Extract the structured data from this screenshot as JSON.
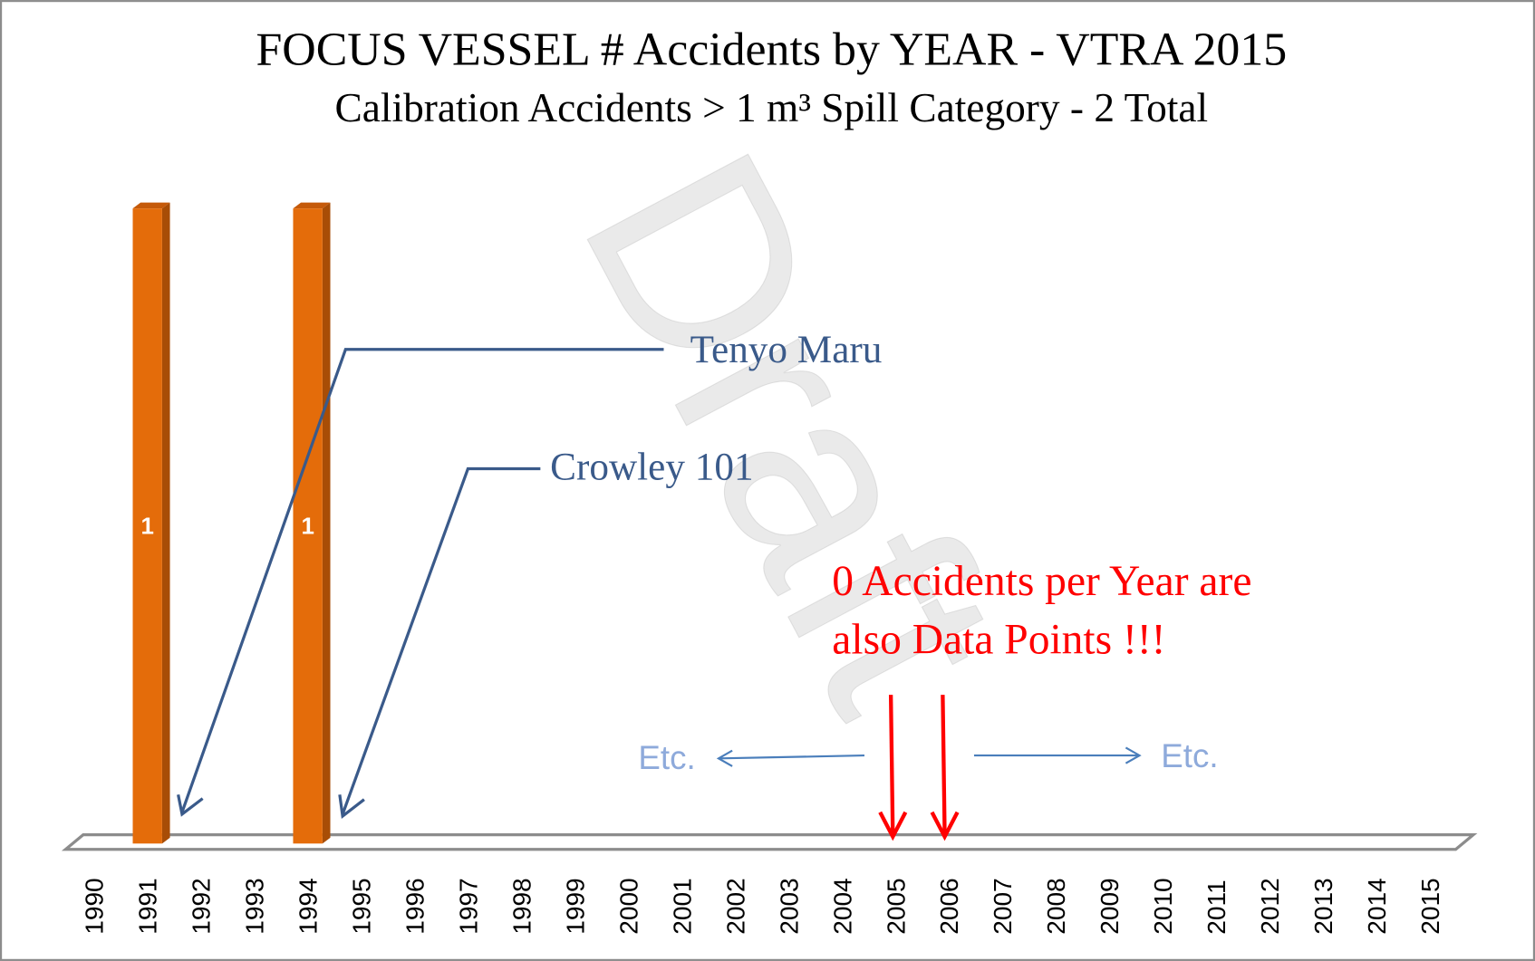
{
  "chart_data": {
    "type": "bar",
    "title": "FOCUS VESSEL # Accidents by YEAR  - VTRA 2015",
    "subtitle": "Calibration Accidents > 1 m³ Spill Category - 2 Total",
    "categories": [
      "1990",
      "1991",
      "1992",
      "1993",
      "1994",
      "1995",
      "1996",
      "1997",
      "1998",
      "1999",
      "2000",
      "2001",
      "2002",
      "2003",
      "2004",
      "2005",
      "2006",
      "2007",
      "2008",
      "2009",
      "2010",
      "2011",
      "2012",
      "2013",
      "2014",
      "2015"
    ],
    "values": [
      0,
      1,
      0,
      0,
      1,
      0,
      0,
      0,
      0,
      0,
      0,
      0,
      0,
      0,
      0,
      0,
      0,
      0,
      0,
      0,
      0,
      0,
      0,
      0,
      0,
      0
    ],
    "color": "#e46c0a",
    "ylim": [
      0,
      1
    ],
    "annotations": {
      "tenyo": "Tenyo Maru",
      "crowley": "Crowley 101",
      "zero_line1": "0 Accidents per Year are",
      "zero_line2": "also Data Points !!!",
      "etc_left": "Etc.",
      "etc_right": "Etc.",
      "watermark": "Draft"
    }
  }
}
